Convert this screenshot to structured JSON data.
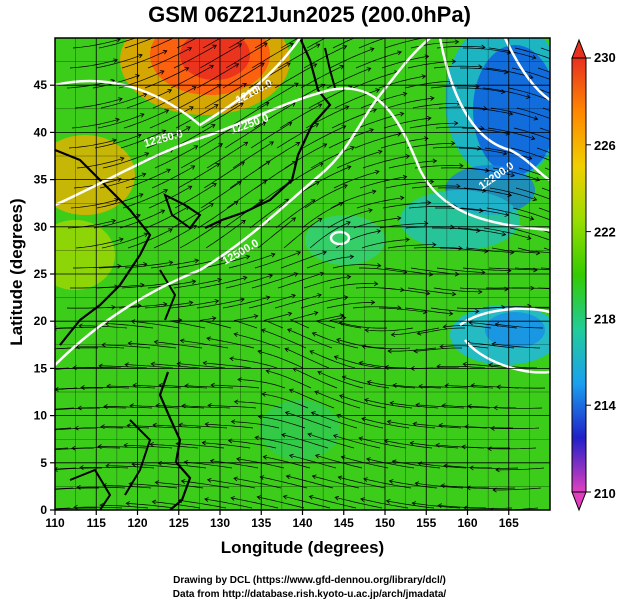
{
  "title": "GSM 06Z21Jun2025 (200.0hPa)",
  "xlabel": "Longitude (degrees)",
  "ylabel": "Latitude  (degrees)",
  "x_ticks": [
    110,
    115,
    120,
    125,
    130,
    135,
    140,
    145,
    150,
    155,
    160,
    165
  ],
  "y_ticks": [
    0,
    5,
    10,
    15,
    20,
    25,
    30,
    35,
    40,
    45
  ],
  "x_range": [
    110,
    170
  ],
  "y_range": [
    0,
    50
  ],
  "colorbar": {
    "ticks": [
      210,
      214,
      218,
      222,
      226,
      230
    ],
    "range": [
      210,
      230
    ],
    "colors": [
      "#e040c0",
      "#2020c8",
      "#1aa0f0",
      "#22cc99",
      "#33cc00",
      "#99dd00",
      "#f0d000",
      "#ff8800",
      "#e83020"
    ]
  },
  "contour_labels": [
    "12100.0",
    "12250.0",
    "12250.0",
    "12200.0",
    "12500.0"
  ],
  "credits": {
    "line1": "Drawing by DCL (https://www.gfd-dennou.org/library/dcl/)",
    "line2": "Data from http://database.rish.kyoto-u.ac.jp/arch/jmadata/"
  }
}
